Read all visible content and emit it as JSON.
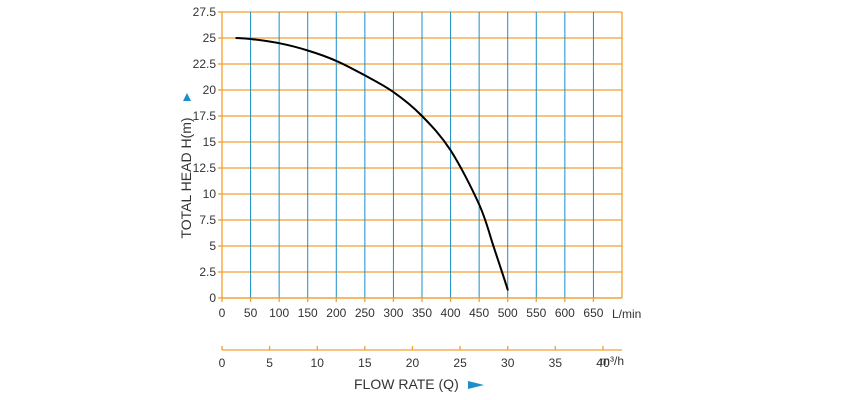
{
  "chart_data": {
    "type": "line",
    "ylabel": "TOTAL HEAD H(m)",
    "xlabel": "FLOW RATE (Q)",
    "x_unit": "L/min",
    "x2_unit": "m³/h",
    "xlim": [
      0,
      700
    ],
    "ylim": [
      0,
      27.5
    ],
    "x_ticks": [
      "0",
      "50",
      "100",
      "150",
      "200",
      "250",
      "300",
      "350",
      "400",
      "450",
      "500",
      "550",
      "600",
      "650"
    ],
    "y_ticks": [
      "0",
      "2.5",
      "5",
      "7.5",
      "10",
      "12.5",
      "15",
      "17.5",
      "20",
      "22.5",
      "25",
      "27.5"
    ],
    "x2_ticks": [
      "0",
      "5",
      "10",
      "15",
      "20",
      "25",
      "30",
      "35",
      "40"
    ],
    "x2_lim": [
      0,
      42
    ],
    "grid": true,
    "grid_color": "#f0a030",
    "line_color": "#000000",
    "accent_color": "#1a8fc9",
    "series": [
      {
        "x": [
          25,
          50,
          100,
          150,
          200,
          250,
          300,
          350,
          400,
          450,
          475,
          490,
          500
        ],
        "y": [
          25,
          24.9,
          24.5,
          23.8,
          22.8,
          21.4,
          19.8,
          17.5,
          14.2,
          9.0,
          5.0,
          2.5,
          0.8
        ]
      }
    ]
  }
}
